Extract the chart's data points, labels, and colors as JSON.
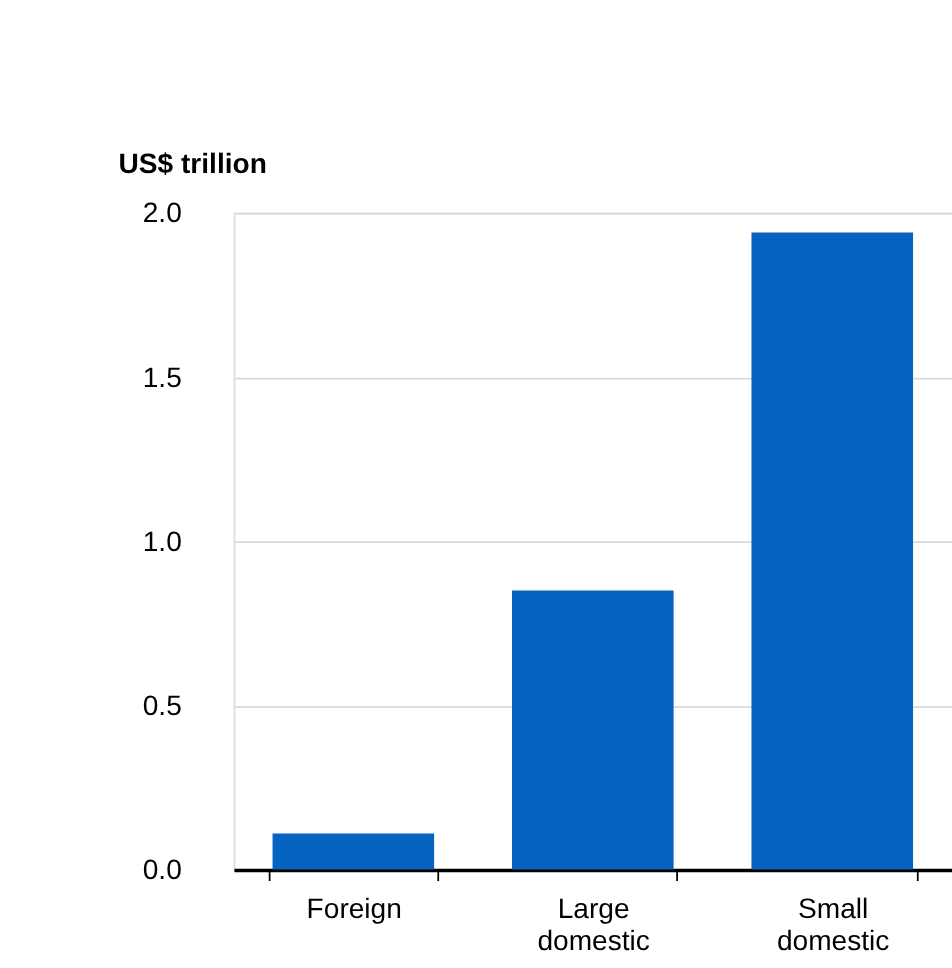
{
  "chart_data": {
    "type": "bar",
    "ylabel": "US$ trillion",
    "categories": [
      "Foreign",
      "Large domestic",
      "Small domestic"
    ],
    "values": [
      0.11,
      0.85,
      1.94
    ],
    "color": "#0563c1",
    "ylim": [
      0,
      2.0
    ],
    "yticks": [
      {
        "value": 0,
        "label": "0.0"
      },
      {
        "value": 0.5,
        "label": "0.5"
      },
      {
        "value": 1.0,
        "label": "1.0"
      },
      {
        "value": 1.5,
        "label": "1.5"
      },
      {
        "value": 2.0,
        "label": "2.0"
      }
    ],
    "grid": "y"
  }
}
